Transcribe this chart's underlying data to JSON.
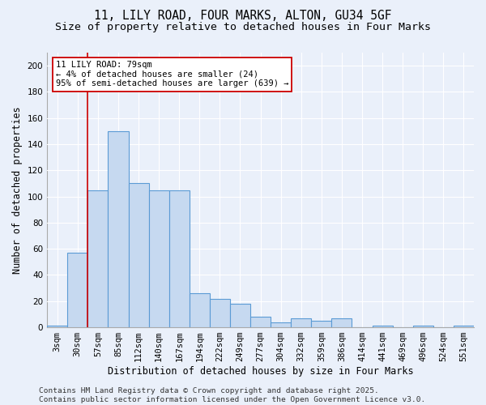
{
  "title": "11, LILY ROAD, FOUR MARKS, ALTON, GU34 5GF",
  "subtitle": "Size of property relative to detached houses in Four Marks",
  "xlabel": "Distribution of detached houses by size in Four Marks",
  "ylabel": "Number of detached properties",
  "categories": [
    "3sqm",
    "30sqm",
    "57sqm",
    "85sqm",
    "112sqm",
    "140sqm",
    "167sqm",
    "194sqm",
    "222sqm",
    "249sqm",
    "277sqm",
    "304sqm",
    "332sqm",
    "359sqm",
    "386sqm",
    "414sqm",
    "441sqm",
    "469sqm",
    "496sqm",
    "524sqm",
    "551sqm"
  ],
  "values": [
    1,
    57,
    105,
    150,
    110,
    105,
    105,
    26,
    22,
    18,
    8,
    4,
    7,
    5,
    7,
    0,
    1,
    0,
    1,
    0,
    1
  ],
  "bar_color": "#c6d9f0",
  "bar_edge_color": "#5b9bd5",
  "bg_color": "#eaf0fa",
  "grid_color": "#ffffff",
  "annotation_line1": "11 LILY ROAD: 79sqm",
  "annotation_line2": "← 4% of detached houses are smaller (24)",
  "annotation_line3": "95% of semi-detached houses are larger (639) →",
  "annotation_box_color": "#ffffff",
  "annotation_box_edge": "#cc0000",
  "redline_x": 1.5,
  "ylim": [
    0,
    210
  ],
  "yticks": [
    0,
    20,
    40,
    60,
    80,
    100,
    120,
    140,
    160,
    180,
    200
  ],
  "footer_line1": "Contains HM Land Registry data © Crown copyright and database right 2025.",
  "footer_line2": "Contains public sector information licensed under the Open Government Licence v3.0.",
  "title_fontsize": 10.5,
  "subtitle_fontsize": 9.5,
  "axis_label_fontsize": 8.5,
  "tick_fontsize": 7.5,
  "footer_fontsize": 6.8
}
